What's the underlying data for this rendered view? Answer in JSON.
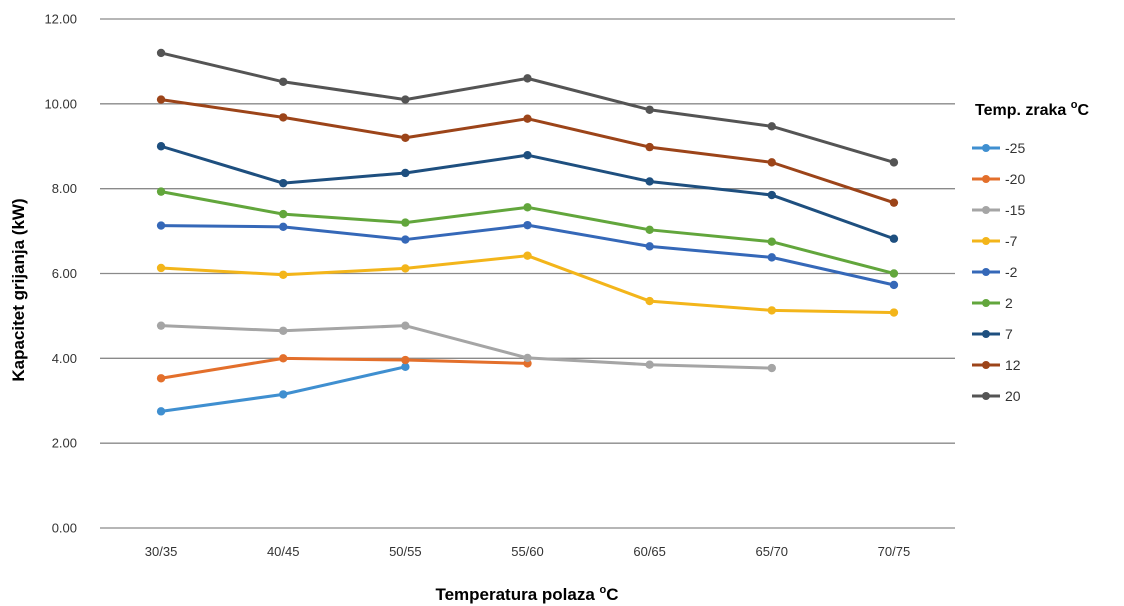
{
  "chart_data": {
    "type": "line",
    "xlabel": "Temperatura polaza",
    "xlabel_sup": "o",
    "xlabel_unit": "C",
    "ylabel": "Kapacitet grijanja (kW)",
    "legend_title": "Temp. zraka",
    "legend_title_sup": "o",
    "legend_title_unit": "C",
    "legend_position": "right",
    "grid": true,
    "ylim": [
      0,
      12
    ],
    "yticks": [
      "0.00",
      "2.00",
      "4.00",
      "6.00",
      "8.00",
      "10.00",
      "12.00"
    ],
    "categories": [
      "30/35",
      "40/45",
      "50/55",
      "55/60",
      "60/65",
      "65/70",
      "70/75"
    ],
    "series": [
      {
        "name": "-25",
        "color": "#3f8fd0",
        "values": [
          2.75,
          3.15,
          3.8,
          null,
          null,
          null,
          null
        ]
      },
      {
        "name": "-20",
        "color": "#e36f2b",
        "values": [
          3.53,
          4.0,
          3.96,
          3.88,
          null,
          null,
          null
        ]
      },
      {
        "name": "-15",
        "color": "#a5a5a5",
        "values": [
          4.77,
          4.65,
          4.77,
          4.01,
          3.85,
          3.77,
          null
        ]
      },
      {
        "name": "-7",
        "color": "#f3b51a",
        "values": [
          6.13,
          5.97,
          6.12,
          6.42,
          5.35,
          5.13,
          5.08
        ]
      },
      {
        "name": "-2",
        "color": "#3568b8",
        "values": [
          7.13,
          7.1,
          6.8,
          7.14,
          6.64,
          6.38,
          5.73
        ]
      },
      {
        "name": "2",
        "color": "#62a63c",
        "values": [
          7.93,
          7.4,
          7.2,
          7.56,
          7.03,
          6.75,
          6.0
        ]
      },
      {
        "name": "7",
        "color": "#1e4f7f",
        "values": [
          9.0,
          8.13,
          8.37,
          8.79,
          8.17,
          7.85,
          6.82
        ]
      },
      {
        "name": "12",
        "color": "#9c4419",
        "values": [
          10.1,
          9.68,
          9.2,
          9.65,
          8.98,
          8.62,
          7.67
        ]
      },
      {
        "name": "20",
        "color": "#545454",
        "values": [
          11.2,
          10.52,
          10.1,
          10.6,
          9.86,
          9.47,
          8.62
        ]
      }
    ]
  }
}
